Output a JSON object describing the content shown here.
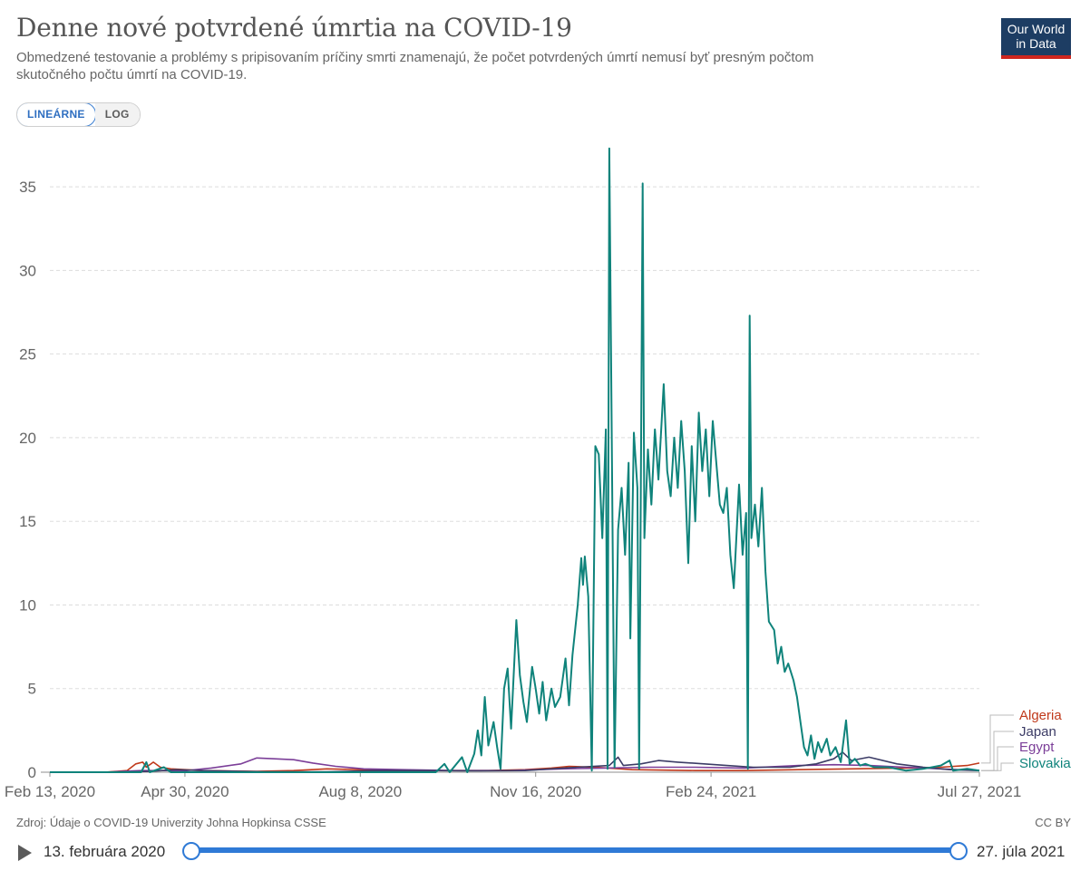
{
  "header": {
    "title": "Denne nové potvrdené úmrtia na COVID-19",
    "subtitle": "Obmedzené testovanie a problémy s pripisovaním príčiny smrti znamenajú, že počet potvrdených úmrtí nemusí byť presným počtom skutočného počtu úmrtí na COVID-19.",
    "logo_line1": "Our World",
    "logo_line2": "in Data"
  },
  "controls": {
    "linear_label": "LINEÁRNE",
    "log_label": "LOG",
    "active": "linear"
  },
  "footer": {
    "source": "Zdroj: Údaje o COVID-19 Univerzity Johna Hopkinsa CSSE",
    "license": "CC BY"
  },
  "timeline": {
    "start_label": "13. februára 2020",
    "end_label": "27. júla 2021"
  },
  "colors": {
    "Algeria": "#c0391b",
    "Japan": "#3c3c66",
    "Egypt": "#7b3e98",
    "Slovakia": "#0f837b",
    "grid": "#dddddd",
    "axis_text": "#666666",
    "accent": "#2f7ad6"
  },
  "chart_data": {
    "type": "line",
    "title": "Denne nové potvrdené úmrtia na COVID-19",
    "xlabel": "",
    "ylabel": "",
    "ylim": [
      0,
      37.5
    ],
    "y_ticks": [
      0,
      5,
      10,
      15,
      20,
      25,
      30,
      35
    ],
    "x_ticks": [
      "Feb 13, 2020",
      "Apr 30, 2020",
      "Aug 8, 2020",
      "Nov 16, 2020",
      "Feb 24, 2021",
      "Jul 27, 2021"
    ],
    "grid": "horizontal dashed",
    "legend_placement": "right",
    "x_domain": [
      "2020-02-13",
      "2021-07-27"
    ],
    "series": [
      {
        "name": "Algeria",
        "points": [
          [
            "2020-02-13",
            0
          ],
          [
            "2020-03-15",
            0
          ],
          [
            "2020-03-28",
            0.1
          ],
          [
            "2020-04-02",
            0.5
          ],
          [
            "2020-04-06",
            0.6
          ],
          [
            "2020-04-08",
            0.3
          ],
          [
            "2020-04-12",
            0.6
          ],
          [
            "2020-04-16",
            0.3
          ],
          [
            "2020-04-22",
            0.2
          ],
          [
            "2020-05-10",
            0.1
          ],
          [
            "2020-06-10",
            0.05
          ],
          [
            "2020-07-01",
            0.1
          ],
          [
            "2020-07-20",
            0.2
          ],
          [
            "2020-08-10",
            0.15
          ],
          [
            "2020-09-15",
            0.1
          ],
          [
            "2020-10-20",
            0.1
          ],
          [
            "2020-11-10",
            0.15
          ],
          [
            "2020-11-25",
            0.25
          ],
          [
            "2020-12-05",
            0.35
          ],
          [
            "2020-12-20",
            0.3
          ],
          [
            "2021-01-10",
            0.15
          ],
          [
            "2021-02-15",
            0.1
          ],
          [
            "2021-03-15",
            0.1
          ],
          [
            "2021-04-15",
            0.15
          ],
          [
            "2021-05-15",
            0.2
          ],
          [
            "2021-06-15",
            0.25
          ],
          [
            "2021-07-05",
            0.3
          ],
          [
            "2021-07-20",
            0.4
          ],
          [
            "2021-07-27",
            0.55
          ]
        ]
      },
      {
        "name": "Japan",
        "points": [
          [
            "2020-02-13",
            0
          ],
          [
            "2020-03-20",
            0
          ],
          [
            "2020-04-10",
            0.05
          ],
          [
            "2020-04-25",
            0.15
          ],
          [
            "2020-05-10",
            0.1
          ],
          [
            "2020-06-15",
            0.02
          ],
          [
            "2020-07-20",
            0.02
          ],
          [
            "2020-08-15",
            0.1
          ],
          [
            "2020-09-15",
            0.1
          ],
          [
            "2020-10-15",
            0.08
          ],
          [
            "2020-11-10",
            0.1
          ],
          [
            "2020-11-25",
            0.2
          ],
          [
            "2020-12-10",
            0.3
          ],
          [
            "2020-12-28",
            0.4
          ],
          [
            "2021-01-02",
            0.9
          ],
          [
            "2021-01-05",
            0.4
          ],
          [
            "2021-01-15",
            0.5
          ],
          [
            "2021-01-25",
            0.7
          ],
          [
            "2021-02-05",
            0.6
          ],
          [
            "2021-02-20",
            0.5
          ],
          [
            "2021-03-05",
            0.4
          ],
          [
            "2021-03-20",
            0.3
          ],
          [
            "2021-04-10",
            0.3
          ],
          [
            "2021-04-25",
            0.5
          ],
          [
            "2021-05-05",
            0.8
          ],
          [
            "2021-05-10",
            1.2
          ],
          [
            "2021-05-15",
            0.7
          ],
          [
            "2021-05-25",
            0.9
          ],
          [
            "2021-06-10",
            0.5
          ],
          [
            "2021-06-25",
            0.3
          ],
          [
            "2021-07-10",
            0.15
          ],
          [
            "2021-07-27",
            0.1
          ]
        ]
      },
      {
        "name": "Egypt",
        "points": [
          [
            "2020-02-13",
            0
          ],
          [
            "2020-03-15",
            0
          ],
          [
            "2020-04-05",
            0.1
          ],
          [
            "2020-05-01",
            0.1
          ],
          [
            "2020-05-15",
            0.25
          ],
          [
            "2020-06-01",
            0.5
          ],
          [
            "2020-06-10",
            0.85
          ],
          [
            "2020-06-20",
            0.8
          ],
          [
            "2020-07-01",
            0.75
          ],
          [
            "2020-07-12",
            0.55
          ],
          [
            "2020-07-25",
            0.35
          ],
          [
            "2020-08-10",
            0.2
          ],
          [
            "2020-09-01",
            0.15
          ],
          [
            "2020-10-01",
            0.1
          ],
          [
            "2020-11-01",
            0.1
          ],
          [
            "2020-12-01",
            0.2
          ],
          [
            "2020-12-25",
            0.25
          ],
          [
            "2021-01-20",
            0.3
          ],
          [
            "2021-02-15",
            0.3
          ],
          [
            "2021-03-15",
            0.25
          ],
          [
            "2021-04-15",
            0.4
          ],
          [
            "2021-05-05",
            0.45
          ],
          [
            "2021-05-25",
            0.4
          ],
          [
            "2021-06-15",
            0.3
          ],
          [
            "2021-07-05",
            0.2
          ],
          [
            "2021-07-27",
            0.1
          ]
        ]
      },
      {
        "name": "Slovakia",
        "points": [
          [
            "2020-02-13",
            0
          ],
          [
            "2020-04-05",
            0
          ],
          [
            "2020-04-08",
            0.6
          ],
          [
            "2020-04-10",
            0
          ],
          [
            "2020-04-18",
            0.3
          ],
          [
            "2020-04-22",
            0
          ],
          [
            "2020-05-01",
            0
          ],
          [
            "2020-09-20",
            0
          ],
          [
            "2020-09-25",
            0.5
          ],
          [
            "2020-09-28",
            0
          ],
          [
            "2020-10-05",
            0.9
          ],
          [
            "2020-10-08",
            0
          ],
          [
            "2020-10-12",
            1.1
          ],
          [
            "2020-10-14",
            2.5
          ],
          [
            "2020-10-16",
            1.0
          ],
          [
            "2020-10-18",
            4.5
          ],
          [
            "2020-10-20",
            1.6
          ],
          [
            "2020-10-23",
            3.0
          ],
          [
            "2020-10-25",
            1.5
          ],
          [
            "2020-10-27",
            0.2
          ],
          [
            "2020-10-29",
            5.0
          ],
          [
            "2020-10-31",
            6.2
          ],
          [
            "2020-11-02",
            2.6
          ],
          [
            "2020-11-05",
            9.1
          ],
          [
            "2020-11-07",
            5.8
          ],
          [
            "2020-11-09",
            4.2
          ],
          [
            "2020-11-11",
            3.0
          ],
          [
            "2020-11-14",
            6.3
          ],
          [
            "2020-11-16",
            5.0
          ],
          [
            "2020-11-18",
            3.5
          ],
          [
            "2020-11-20",
            5.4
          ],
          [
            "2020-11-22",
            3.1
          ],
          [
            "2020-11-25",
            5.0
          ],
          [
            "2020-11-27",
            3.9
          ],
          [
            "2020-11-30",
            4.5
          ],
          [
            "2020-12-03",
            6.8
          ],
          [
            "2020-12-05",
            4.0
          ],
          [
            "2020-12-07",
            7.0
          ],
          [
            "2020-12-10",
            10.0
          ],
          [
            "2020-12-12",
            12.8
          ],
          [
            "2020-12-13",
            11.2
          ],
          [
            "2020-12-14",
            12.9
          ],
          [
            "2020-12-16",
            10.5
          ],
          [
            "2020-12-18",
            0.1
          ],
          [
            "2020-12-20",
            19.5
          ],
          [
            "2020-12-22",
            19.0
          ],
          [
            "2020-12-24",
            14.0
          ],
          [
            "2020-12-26",
            20.5
          ],
          [
            "2020-12-27",
            0.2
          ],
          [
            "2020-12-28",
            37.3
          ],
          [
            "2020-12-30",
            12.5
          ],
          [
            "2020-12-31",
            0.3
          ],
          [
            "2021-01-02",
            14.5
          ],
          [
            "2021-01-04",
            17.0
          ],
          [
            "2021-01-06",
            13.0
          ],
          [
            "2021-01-08",
            18.5
          ],
          [
            "2021-01-09",
            8.0
          ],
          [
            "2021-01-11",
            20.3
          ],
          [
            "2021-01-13",
            17.0
          ],
          [
            "2021-01-14",
            0.2
          ],
          [
            "2021-01-16",
            35.2
          ],
          [
            "2021-01-17",
            14.0
          ],
          [
            "2021-01-19",
            19.3
          ],
          [
            "2021-01-21",
            16.0
          ],
          [
            "2021-01-23",
            20.5
          ],
          [
            "2021-01-25",
            17.5
          ],
          [
            "2021-01-28",
            23.2
          ],
          [
            "2021-01-30",
            18.0
          ],
          [
            "2021-02-01",
            16.5
          ],
          [
            "2021-02-03",
            20.0
          ],
          [
            "2021-02-05",
            17.0
          ],
          [
            "2021-02-07",
            21.0
          ],
          [
            "2021-02-09",
            18.0
          ],
          [
            "2021-02-11",
            12.5
          ],
          [
            "2021-02-13",
            19.5
          ],
          [
            "2021-02-15",
            15.0
          ],
          [
            "2021-02-17",
            21.5
          ],
          [
            "2021-02-19",
            18.0
          ],
          [
            "2021-02-21",
            20.5
          ],
          [
            "2021-02-23",
            16.5
          ],
          [
            "2021-02-25",
            21.0
          ],
          [
            "2021-02-27",
            18.5
          ],
          [
            "2021-03-01",
            16.0
          ],
          [
            "2021-03-03",
            15.5
          ],
          [
            "2021-03-05",
            17.0
          ],
          [
            "2021-03-07",
            13.0
          ],
          [
            "2021-03-09",
            11.0
          ],
          [
            "2021-03-12",
            17.2
          ],
          [
            "2021-03-14",
            13.0
          ],
          [
            "2021-03-16",
            15.5
          ],
          [
            "2021-03-17",
            0.2
          ],
          [
            "2021-03-18",
            27.3
          ],
          [
            "2021-03-19",
            14.0
          ],
          [
            "2021-03-21",
            16.0
          ],
          [
            "2021-03-23",
            13.5
          ],
          [
            "2021-03-25",
            17.0
          ],
          [
            "2021-03-27",
            12.0
          ],
          [
            "2021-03-29",
            9.0
          ],
          [
            "2021-04-01",
            8.5
          ],
          [
            "2021-04-03",
            6.5
          ],
          [
            "2021-04-05",
            7.5
          ],
          [
            "2021-04-07",
            6.0
          ],
          [
            "2021-04-09",
            6.5
          ],
          [
            "2021-04-12",
            5.5
          ],
          [
            "2021-04-14",
            4.5
          ],
          [
            "2021-04-16",
            3.0
          ],
          [
            "2021-04-18",
            1.5
          ],
          [
            "2021-04-20",
            1.0
          ],
          [
            "2021-04-22",
            2.2
          ],
          [
            "2021-04-24",
            0.8
          ],
          [
            "2021-04-26",
            1.8
          ],
          [
            "2021-04-28",
            1.2
          ],
          [
            "2021-05-01",
            2.0
          ],
          [
            "2021-05-03",
            1.0
          ],
          [
            "2021-05-06",
            1.5
          ],
          [
            "2021-05-09",
            0.6
          ],
          [
            "2021-05-12",
            3.1
          ],
          [
            "2021-05-14",
            0.5
          ],
          [
            "2021-05-17",
            0.8
          ],
          [
            "2021-05-20",
            0.4
          ],
          [
            "2021-05-23",
            0.5
          ],
          [
            "2021-05-28",
            0.3
          ],
          [
            "2021-06-05",
            0.3
          ],
          [
            "2021-06-15",
            0.1
          ],
          [
            "2021-06-25",
            0.2
          ],
          [
            "2021-07-05",
            0.4
          ],
          [
            "2021-07-10",
            0.7
          ],
          [
            "2021-07-12",
            0.1
          ],
          [
            "2021-07-20",
            0.2
          ],
          [
            "2021-07-27",
            0.1
          ]
        ]
      }
    ]
  }
}
